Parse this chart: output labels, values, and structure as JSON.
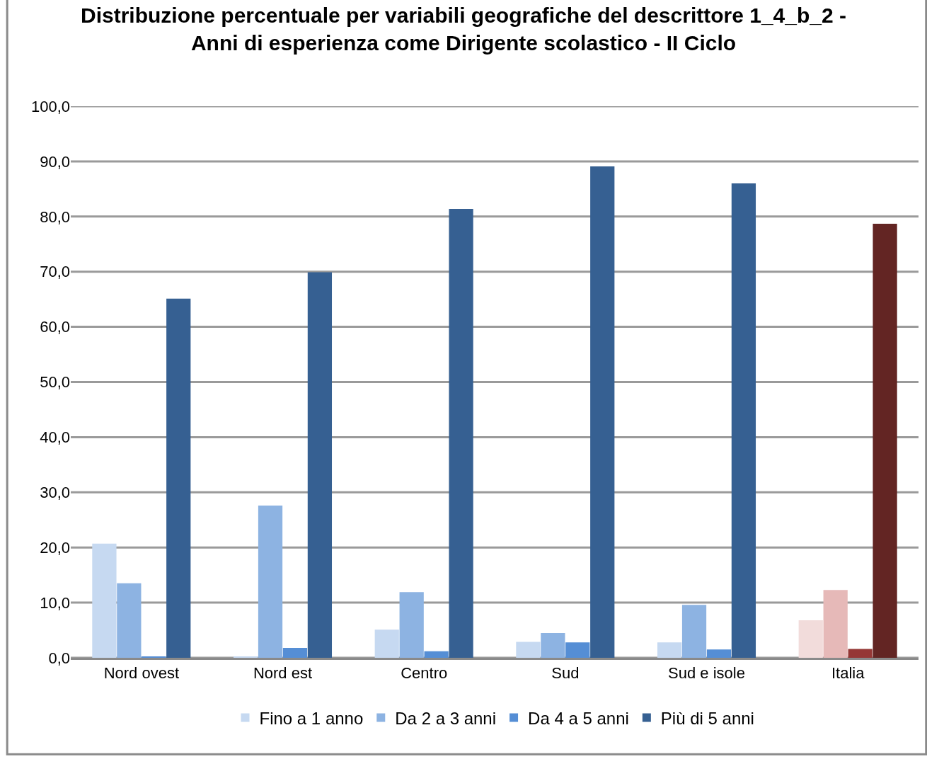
{
  "chart_data": {
    "type": "bar",
    "title": "Distribuzione percentuale per variabili geografiche del descrittore 1_4_b_2 -\nAnni di esperienza come Dirigente scolastico - II Ciclo",
    "categories": [
      "Nord ovest",
      "Nord est",
      "Centro",
      "Sud",
      "Sud e isole",
      "Italia"
    ],
    "series": [
      {
        "name": "Fino a 1 anno",
        "color": "#c6d9f1",
        "colors": [
          null,
          null,
          null,
          null,
          null,
          "#f2dcdb"
        ],
        "values": [
          20.7,
          0.2,
          5.1,
          2.9,
          2.8,
          6.8
        ]
      },
      {
        "name": "Da 2 a 3 anni",
        "color": "#8db3e2",
        "colors": [
          null,
          null,
          null,
          null,
          null,
          "#e6b9b8"
        ],
        "values": [
          13.5,
          27.6,
          11.9,
          4.5,
          9.6,
          12.3
        ]
      },
      {
        "name": "Da 4 a 5 anni",
        "color": "#558ed5",
        "colors": [
          null,
          null,
          null,
          null,
          null,
          "#953735"
        ],
        "values": [
          0.2,
          1.8,
          1.2,
          2.8,
          1.5,
          1.6
        ]
      },
      {
        "name": "Più di 5 anni",
        "color": "#366092",
        "colors": [
          null,
          null,
          null,
          null,
          null,
          "#632523"
        ],
        "values": [
          65.1,
          69.9,
          81.4,
          89.1,
          86.0,
          78.7
        ]
      }
    ],
    "ylim": [
      0,
      100
    ],
    "yticks": [
      {
        "value": 0,
        "label": "0,0"
      },
      {
        "value": 10,
        "label": "10,0"
      },
      {
        "value": 20,
        "label": "20,0"
      },
      {
        "value": 30,
        "label": "30,0"
      },
      {
        "value": 40,
        "label": "40,0"
      },
      {
        "value": 50,
        "label": "50,0"
      },
      {
        "value": 60,
        "label": "60,0"
      },
      {
        "value": 70,
        "label": "70,0"
      },
      {
        "value": 80,
        "label": "80,0"
      },
      {
        "value": 90,
        "label": "90,0"
      },
      {
        "value": 100,
        "label": "100,0"
      }
    ],
    "grid": "y",
    "legend": "bottom"
  }
}
